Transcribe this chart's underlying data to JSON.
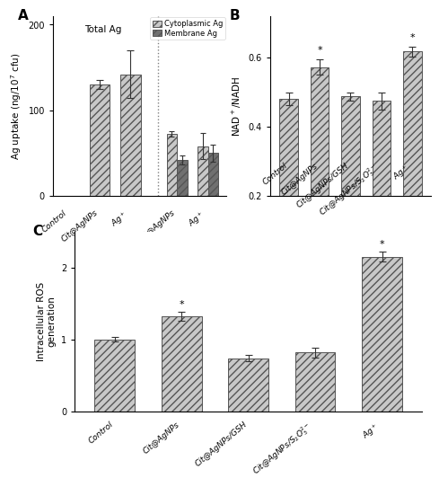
{
  "panel_A": {
    "title": "Total Ag",
    "ylabel": "Ag uptake (ng/10$^7$ cfu)",
    "ylim": [
      0,
      210
    ],
    "yticks": [
      0,
      100,
      200
    ],
    "total_cats": [
      "Control",
      "Cit@AgNPs",
      "Ag$^+$"
    ],
    "total_vals": [
      0,
      130,
      142
    ],
    "total_errs": [
      0,
      5,
      28
    ],
    "total_color": "#c8c8c8",
    "total_hatch": "////",
    "split_cats": [
      "Cit@AgNPs",
      "Ag$^+$"
    ],
    "cyto_vals": [
      72,
      58
    ],
    "cyto_errs": [
      3,
      15
    ],
    "mem_vals": [
      42,
      50
    ],
    "mem_errs": [
      5,
      10
    ],
    "cyto_color": "#c8c8c8",
    "cyto_hatch": "////",
    "mem_color": "#707070",
    "mem_hatch": "////",
    "legend_labels": [
      "Cytoplasmic Ag",
      "Membrane Ag"
    ]
  },
  "panel_B": {
    "ylabel": "NAD$^+$/NADH",
    "ylim": [
      0.2,
      0.72
    ],
    "yticks": [
      0.2,
      0.4,
      0.6
    ],
    "categories": [
      "Control",
      "Cit@AgNPs",
      "Cit@AgNPs/GSH",
      "Cit@AgNPs/S$_2$O$_3^{2-}$",
      "Ag$^+$"
    ],
    "values": [
      0.48,
      0.572,
      0.487,
      0.474,
      0.617
    ],
    "errors": [
      0.018,
      0.022,
      0.012,
      0.025,
      0.015
    ],
    "color": "#c8c8c8",
    "hatch": "////",
    "star": [
      false,
      true,
      false,
      false,
      true
    ]
  },
  "panel_C": {
    "ylabel": "Intracellular ROS\ngeneration",
    "ylim": [
      0,
      2.5
    ],
    "yticks": [
      0,
      1,
      2
    ],
    "categories": [
      "Control",
      "Cit@AgNPs",
      "Cit@AgNPs/GSH",
      "Cit@AgNPs/S$_2$O$_3^{2-}$",
      "Ag$^+$"
    ],
    "values": [
      1.0,
      1.32,
      0.74,
      0.82,
      2.15
    ],
    "errors": [
      0.03,
      0.06,
      0.04,
      0.07,
      0.07
    ],
    "color": "#c8c8c8",
    "hatch": "////",
    "star": [
      false,
      true,
      false,
      false,
      true
    ]
  },
  "bg_color": "#ffffff",
  "bar_edge_color": "#555555",
  "label_fontsize": 7.5,
  "tick_fontsize": 7,
  "panel_label_fontsize": 11
}
